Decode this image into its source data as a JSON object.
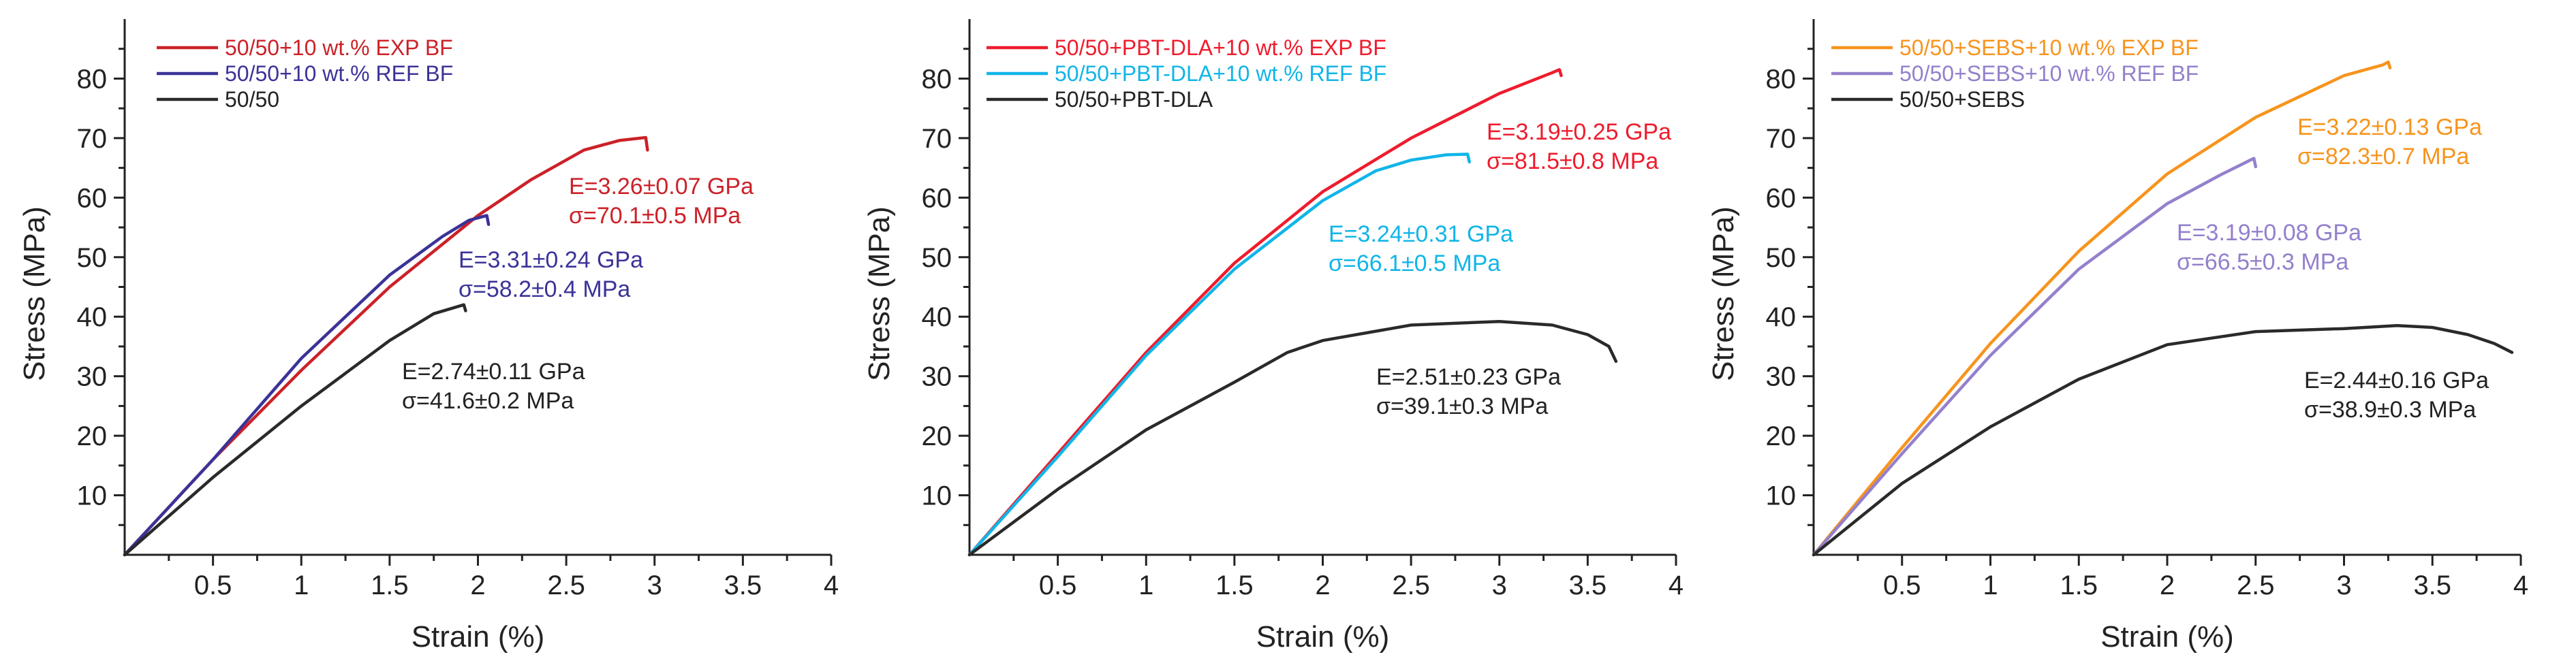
{
  "chart_data": [
    {
      "type": "line",
      "xlabel": "Strain (%)",
      "ylabel": "Stress (MPa)",
      "xlim": [
        0,
        4
      ],
      "ylim": [
        0,
        90
      ],
      "xticks": [
        "0.5",
        "1",
        "1.5",
        "2",
        "2.5",
        "3",
        "3.5",
        "4"
      ],
      "yticks": [
        "10",
        "20",
        "30",
        "40",
        "50",
        "60",
        "70",
        "80"
      ],
      "legend_position": "top-left",
      "series": [
        {
          "name": "50/50+10 wt.% EXP BF",
          "color": "#cc2128",
          "x": [
            0,
            0.5,
            1.0,
            1.5,
            2.0,
            2.3,
            2.6,
            2.8,
            2.95,
            2.96
          ],
          "y": [
            0,
            16,
            31,
            45,
            57,
            63,
            68,
            69.6,
            70.1,
            68.0
          ],
          "annotation": [
            "E=3.26±0.07 GPa",
            "σ=70.1±0.5 MPa"
          ]
        },
        {
          "name": "50/50+10 wt.% REF BF",
          "color": "#3b3398",
          "x": [
            0,
            0.5,
            1.0,
            1.5,
            1.8,
            1.95,
            2.05,
            2.06
          ],
          "y": [
            0,
            16,
            33,
            47,
            53.5,
            56.2,
            57.0,
            55.5
          ],
          "annotation": [
            "E=3.31±0.24 GPa",
            "σ=58.2±0.4 MPa"
          ]
        },
        {
          "name": "50/50",
          "color": "#2a2a2a",
          "x": [
            0,
            0.5,
            1.0,
            1.5,
            1.75,
            1.92,
            1.93
          ],
          "y": [
            0,
            13,
            25,
            36,
            40.5,
            42.0,
            41.0
          ],
          "annotation": [
            "E=2.74±0.11 GPa",
            "σ=41.6±0.2 MPa"
          ]
        }
      ]
    },
    {
      "type": "line",
      "xlabel": "Strain (%)",
      "ylabel": "Stress (MPa)",
      "xlim": [
        0,
        4
      ],
      "ylim": [
        0,
        90
      ],
      "xticks": [
        "0.5",
        "1",
        "1.5",
        "2",
        "2.5",
        "3",
        "3.5",
        "4"
      ],
      "yticks": [
        "10",
        "20",
        "30",
        "40",
        "50",
        "60",
        "70",
        "80"
      ],
      "legend_position": "top-left",
      "series": [
        {
          "name": "50/50+PBT-DLA+10 wt.% EXP BF",
          "color": "#ee1c2d",
          "x": [
            0,
            0.5,
            1.0,
            1.5,
            2.0,
            2.5,
            3.0,
            3.3,
            3.34,
            3.35
          ],
          "y": [
            0,
            17,
            34,
            49,
            61,
            70,
            77.5,
            81,
            81.5,
            80.5
          ],
          "annotation": [
            "E=3.19±0.25 GPa",
            "σ=81.5±0.8 MPa"
          ]
        },
        {
          "name": "50/50+PBT-DLA+10 wt.% REF BF",
          "color": "#11b5e8",
          "x": [
            0,
            0.5,
            1.0,
            1.5,
            2.0,
            2.3,
            2.5,
            2.7,
            2.82,
            2.83
          ],
          "y": [
            0,
            16.5,
            33.5,
            48,
            59.5,
            64.5,
            66.3,
            67.2,
            67.3,
            66.0
          ],
          "annotation": [
            "E=3.24±0.31 GPa",
            "σ=66.1±0.5 MPa"
          ]
        },
        {
          "name": "50/50+PBT-DLA",
          "color": "#2a2a2a",
          "x": [
            0,
            0.5,
            1.0,
            1.5,
            1.8,
            2.0,
            2.5,
            3.0,
            3.3,
            3.5,
            3.62,
            3.66
          ],
          "y": [
            0,
            11,
            21,
            29,
            34,
            36,
            38.6,
            39.2,
            38.6,
            37,
            35,
            32.5
          ],
          "annotation": [
            "E=2.51±0.23 GPa",
            "σ=39.1±0.3 MPa"
          ]
        }
      ]
    },
    {
      "type": "line",
      "xlabel": "Strain (%)",
      "ylabel": "Stress (MPa)",
      "xlim": [
        0,
        4
      ],
      "ylim": [
        0,
        90
      ],
      "xticks": [
        "0.5",
        "1",
        "1.5",
        "2",
        "2.5",
        "3",
        "3.5",
        "4"
      ],
      "yticks": [
        "10",
        "20",
        "30",
        "40",
        "50",
        "60",
        "70",
        "80"
      ],
      "legend_position": "top-left",
      "series": [
        {
          "name": "50/50+SEBS+10 wt.% EXP BF",
          "color": "#f7941d",
          "x": [
            0,
            0.5,
            1.0,
            1.5,
            2.0,
            2.5,
            3.0,
            3.22,
            3.25,
            3.26
          ],
          "y": [
            0,
            18,
            35.5,
            51,
            64,
            73.5,
            80.5,
            82.3,
            82.8,
            81.8
          ],
          "annotation": [
            "E=3.22±0.13 GPa",
            "σ=82.3±0.7 MPa"
          ]
        },
        {
          "name": "50/50+SEBS+10 wt.% REF BF",
          "color": "#9480cc",
          "x": [
            0,
            0.5,
            1.0,
            1.5,
            2.0,
            2.3,
            2.49,
            2.5
          ],
          "y": [
            0,
            17,
            33.5,
            48,
            59,
            63.8,
            66.6,
            65.2
          ],
          "annotation": [
            "E=3.19±0.08 GPa",
            "σ=66.5±0.3 MPa"
          ]
        },
        {
          "name": "50/50+SEBS",
          "color": "#2a2a2a",
          "x": [
            0,
            0.5,
            1.0,
            1.5,
            2.0,
            2.5,
            3.0,
            3.3,
            3.5,
            3.7,
            3.85,
            3.95
          ],
          "y": [
            0,
            12,
            21.5,
            29.5,
            35.3,
            37.5,
            38,
            38.5,
            38.2,
            37,
            35.5,
            34
          ],
          "annotation": [
            "E=2.44±0.16 GPa",
            "σ=38.9±0.3 MPa"
          ]
        }
      ]
    }
  ]
}
